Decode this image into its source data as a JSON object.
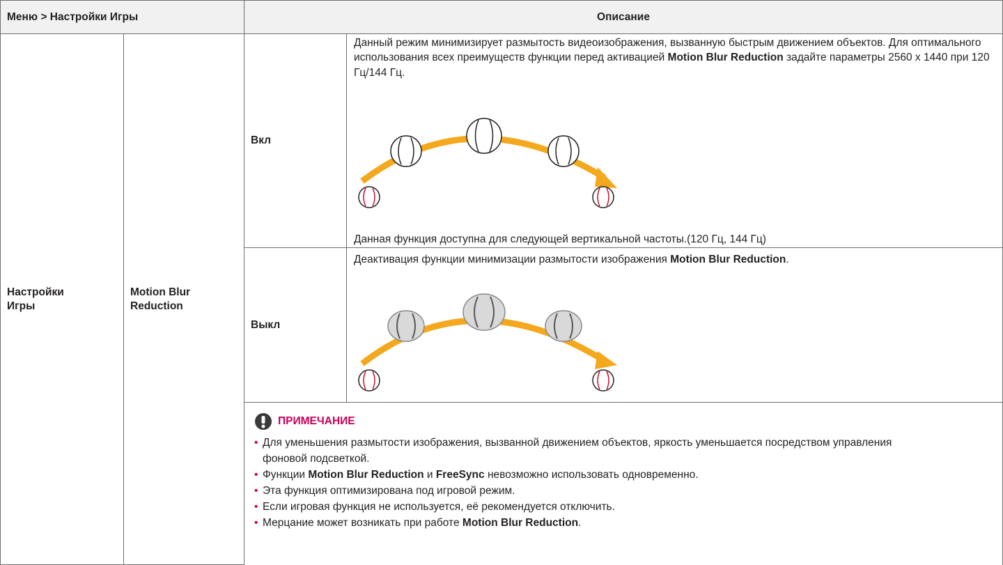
{
  "header": {
    "menu": "Меню > Настройки Игры",
    "description": "Описание"
  },
  "section": "Настройки Игры",
  "feature": "Motion Blur Reduction",
  "on": {
    "label": "Вкл",
    "paragraphs": [
      [
        "Данный режим минимизирует размытость видеоизображения, вызванную быстрым движением объектов. Для оптимального использования всех преимуществ функции перед активацией ",
        "Motion Blur Reduction",
        " задайте параметры 2560 x 1440 при 120 Гц/144 Гц."
      ],
      [
        "Данная функция доступна для следующей вертикальной частоты.(120 Гц, 144 Гц)"
      ]
    ]
  },
  "off": {
    "label": "Выкл",
    "paragraphs": [
      [
        "Деактивация функции минимизации размытости изображения ",
        "Motion Blur Reduction",
        "."
      ]
    ]
  },
  "note": {
    "title": "ПРИМЕЧАНИЕ",
    "items": [
      [
        "Для уменьшения размытости изображения, вызванной движением объектов, яркость уменьшается посредством управления фоновой подсветкой."
      ],
      [
        "Функции ",
        "Motion Blur Reduction",
        " и ",
        "FreeSync",
        " невозможно использовать одновременно."
      ],
      [
        "Эта функция оптимизирована под игровой режим."
      ],
      [
        "Если игровая функция не используется, её рекомендуется отключить."
      ],
      [
        "Мерцание может возникать при работе ",
        "Motion Blur Reduction",
        "."
      ]
    ]
  }
}
